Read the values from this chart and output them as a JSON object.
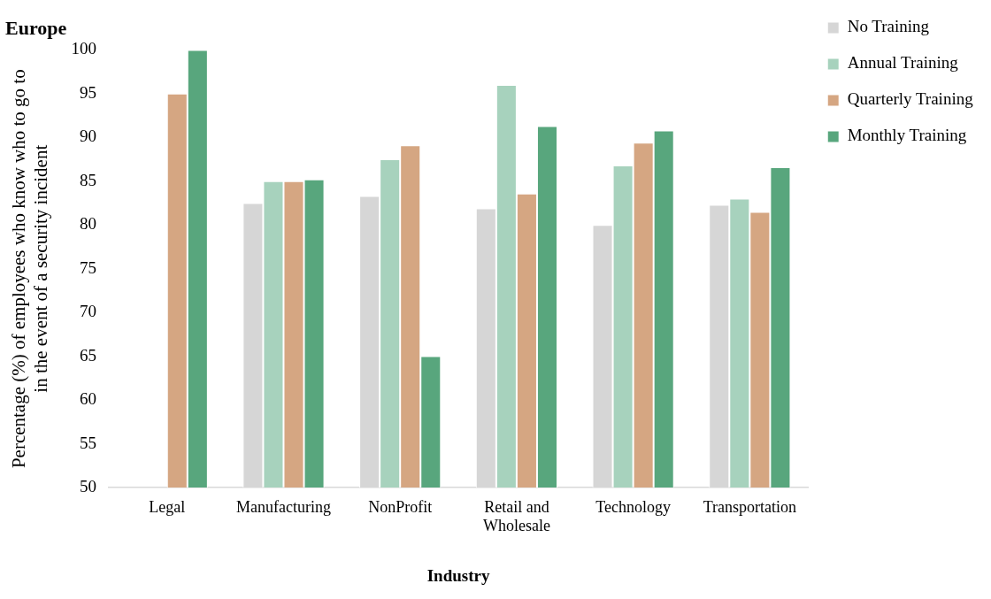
{
  "chart_data": {
    "type": "bar",
    "title": "Europe",
    "xlabel": "Industry",
    "ylabel": "Percentage (%) of employees who know who to go to in the event of a security incident",
    "categories": [
      "Legal",
      "Manufacturing",
      "NonProfit",
      "Retail and Wholesale",
      "Technology",
      "Transportation"
    ],
    "series": [
      {
        "name": "No Training",
        "color": "#d6d6d6",
        "values": [
          null,
          82.5,
          83.3,
          81.9,
          80.0,
          82.3
        ]
      },
      {
        "name": "Annual Training",
        "color": "#a7d2bd",
        "values": [
          null,
          85.0,
          87.5,
          96.0,
          86.8,
          83.0
        ]
      },
      {
        "name": "Quarterly Training",
        "color": "#d5a682",
        "values": [
          95.0,
          85.0,
          89.1,
          83.6,
          89.4,
          81.5
        ]
      },
      {
        "name": "Monthly Training",
        "color": "#58a67d",
        "values": [
          100.0,
          85.2,
          65.0,
          91.3,
          90.8,
          86.6
        ]
      }
    ],
    "ylim": [
      50,
      100
    ],
    "yticks": [
      50,
      55,
      60,
      65,
      70,
      75,
      80,
      85,
      90,
      95,
      100
    ],
    "grid": false,
    "legend": "top right"
  }
}
